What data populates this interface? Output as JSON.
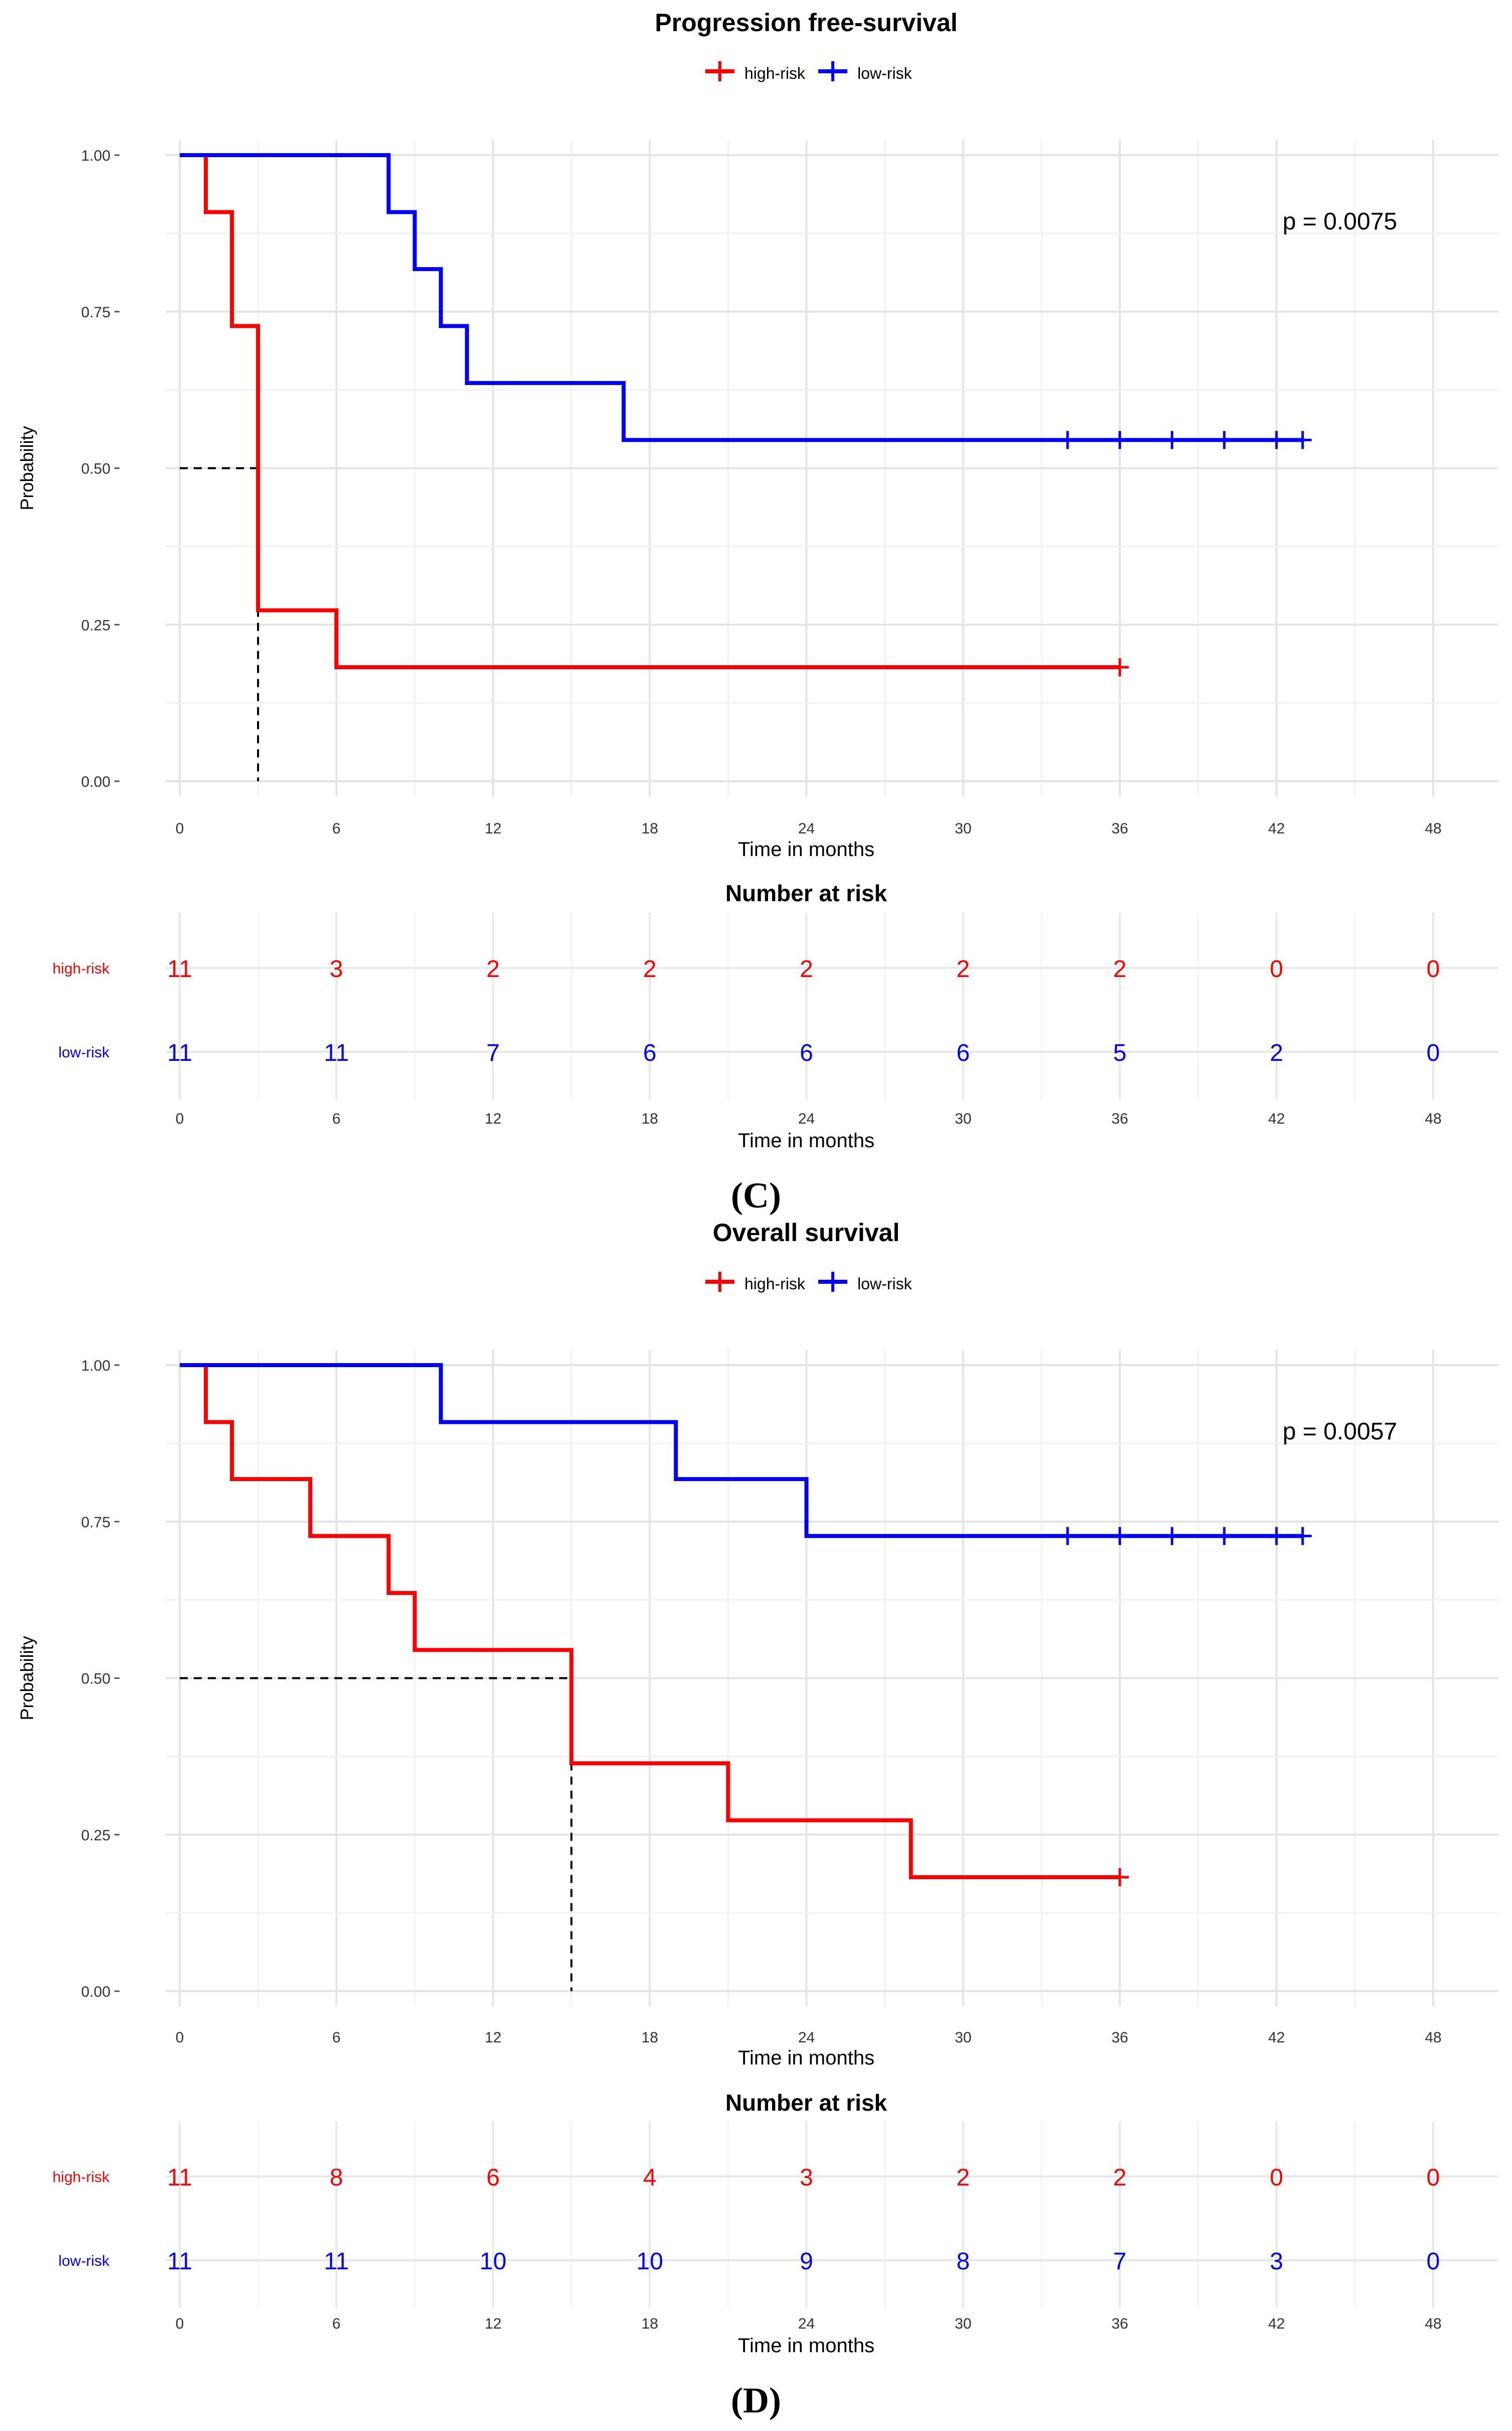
{
  "panels": [
    {
      "caption": "(C)",
      "chart_data": {
        "type": "line",
        "subtype": "kaplan-meier step",
        "title": "Progression free-survival",
        "xlabel": "Time in months",
        "ylabel": "Probability",
        "xlim": [
          0,
          48
        ],
        "ylim": [
          0,
          1
        ],
        "x_ticks": [
          0,
          6,
          12,
          18,
          24,
          30,
          36,
          42,
          48
        ],
        "x_tick_labels": [
          "0",
          "6",
          "12",
          "18",
          "24",
          "30",
          "36",
          "42",
          "48"
        ],
        "y_ticks": [
          0,
          0.25,
          0.5,
          0.75,
          1.0
        ],
        "y_tick_labels": [
          "0.00",
          "0.25",
          "0.50",
          "0.75",
          "1.00"
        ],
        "grid": true,
        "legend_position": "top-center",
        "annotation": "p = 0.0075",
        "series": [
          {
            "name": "high-risk",
            "color": "#ff0000",
            "steps": [
              [
                0,
                1.0
              ],
              [
                1,
                0.909
              ],
              [
                2,
                0.727
              ],
              [
                3,
                0.273
              ],
              [
                6,
                0.182
              ],
              [
                36,
                0.182
              ]
            ],
            "censor_times": [
              36
            ]
          },
          {
            "name": "low-risk",
            "color": "#0000ff",
            "steps": [
              [
                0,
                1.0
              ],
              [
                8,
                0.909
              ],
              [
                9,
                0.818
              ],
              [
                10,
                0.727
              ],
              [
                11,
                0.636
              ],
              [
                17,
                0.545
              ],
              [
                43,
                0.545
              ]
            ],
            "censor_times": [
              34,
              36,
              38,
              40,
              42,
              43
            ]
          }
        ],
        "median_line": {
          "x": 3,
          "y": 0.5
        },
        "risk_table": {
          "title": "Number at risk",
          "xlabel": "Time in months",
          "times": [
            0,
            6,
            12,
            18,
            24,
            30,
            36,
            42,
            48
          ],
          "rows": [
            {
              "name": "high-risk",
              "color": "#ff0000",
              "values": [
                11,
                3,
                2,
                2,
                2,
                2,
                2,
                0,
                0
              ]
            },
            {
              "name": "low-risk",
              "color": "#0000ff",
              "values": [
                11,
                11,
                7,
                6,
                6,
                6,
                5,
                2,
                0
              ]
            }
          ]
        }
      }
    },
    {
      "caption": "(D)",
      "chart_data": {
        "type": "line",
        "subtype": "kaplan-meier step",
        "title": "Overall survival",
        "xlabel": "Time in months",
        "ylabel": "Probability",
        "xlim": [
          0,
          48
        ],
        "ylim": [
          0,
          1
        ],
        "x_ticks": [
          0,
          6,
          12,
          18,
          24,
          30,
          36,
          42,
          48
        ],
        "x_tick_labels": [
          "0",
          "6",
          "12",
          "18",
          "24",
          "30",
          "36",
          "42",
          "48"
        ],
        "y_ticks": [
          0,
          0.25,
          0.5,
          0.75,
          1.0
        ],
        "y_tick_labels": [
          "0.00",
          "0.25",
          "0.50",
          "0.75",
          "1.00"
        ],
        "grid": true,
        "legend_position": "top-center",
        "annotation": "p = 0.0057",
        "series": [
          {
            "name": "high-risk",
            "color": "#ff0000",
            "steps": [
              [
                0,
                1.0
              ],
              [
                1,
                0.909
              ],
              [
                2,
                0.818
              ],
              [
                5,
                0.727
              ],
              [
                8,
                0.636
              ],
              [
                9,
                0.545
              ],
              [
                15,
                0.364
              ],
              [
                21,
                0.273
              ],
              [
                28,
                0.182
              ],
              [
                36,
                0.182
              ]
            ],
            "censor_times": [
              36
            ]
          },
          {
            "name": "low-risk",
            "color": "#0000ff",
            "steps": [
              [
                0,
                1.0
              ],
              [
                10,
                0.909
              ],
              [
                19,
                0.818
              ],
              [
                24,
                0.727
              ],
              [
                43,
                0.727
              ]
            ],
            "censor_times": [
              34,
              36,
              38,
              40,
              42,
              43
            ]
          }
        ],
        "median_line": {
          "x": 15,
          "y": 0.5
        },
        "risk_table": {
          "title": "Number at risk",
          "xlabel": "Time in months",
          "times": [
            0,
            6,
            12,
            18,
            24,
            30,
            36,
            42,
            48
          ],
          "rows": [
            {
              "name": "high-risk",
              "color": "#ff0000",
              "values": [
                11,
                8,
                6,
                4,
                3,
                2,
                2,
                0,
                0
              ]
            },
            {
              "name": "low-risk",
              "color": "#0000ff",
              "values": [
                11,
                11,
                10,
                10,
                9,
                8,
                7,
                3,
                0
              ]
            }
          ]
        }
      }
    }
  ]
}
